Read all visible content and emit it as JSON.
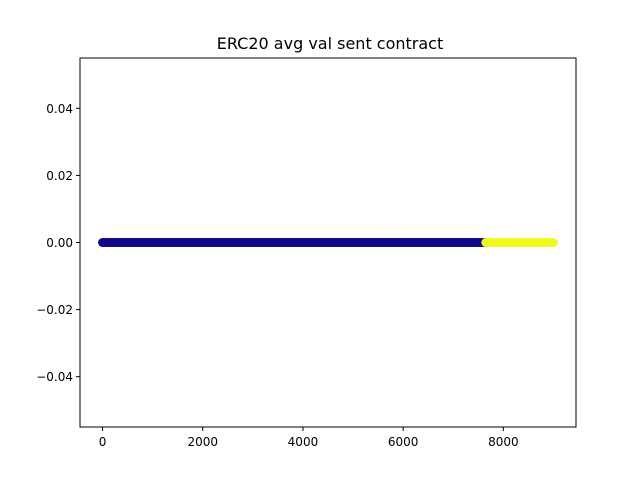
{
  "chart_data": {
    "type": "scatter",
    "title": "ERC20 avg val sent contract",
    "xlabel": "",
    "ylabel": "",
    "xlim": [
      -450,
      9450
    ],
    "ylim": [
      -0.055,
      0.055
    ],
    "x_ticks": [
      0,
      2000,
      4000,
      6000,
      8000
    ],
    "x_tick_labels": [
      "0",
      "2000",
      "4000",
      "6000",
      "8000"
    ],
    "y_ticks": [
      0.04,
      0.02,
      0.0,
      -0.02,
      -0.04
    ],
    "y_tick_labels": [
      "0.04",
      "0.02",
      "0.00",
      "−0.02",
      "−0.04"
    ],
    "grid": false,
    "series": [
      {
        "color": "#0d0887",
        "x_range": [
          0,
          7650
        ],
        "y": 0.0
      },
      {
        "color": "#f0f921",
        "x_range": [
          7650,
          9000
        ],
        "y": 0.0
      }
    ]
  }
}
